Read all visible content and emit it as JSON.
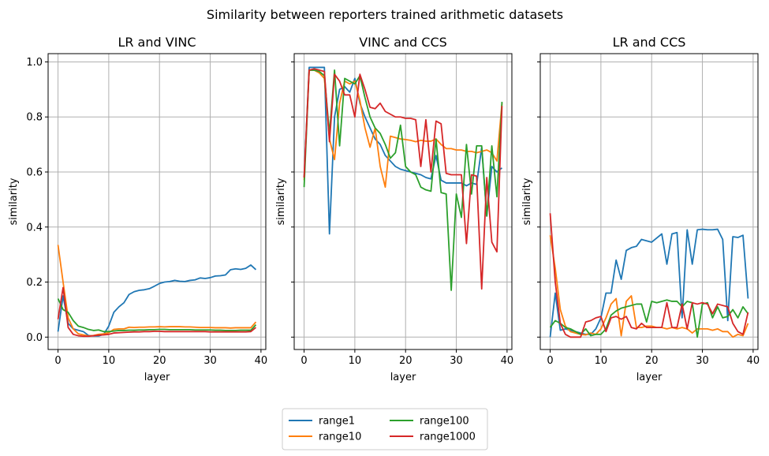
{
  "figure": {
    "suptitle": "Similarity between reporters trained arithmetic datasets"
  },
  "colors": {
    "range1": "#1f77b4",
    "range10": "#ff7f0e",
    "range100": "#2ca02c",
    "range1000": "#d62728",
    "grid": "#b0b0b0",
    "axes": "#000000"
  },
  "legend": {
    "placement": "bottom-center",
    "ncol": 2,
    "entries": [
      "range1",
      "range10",
      "range100",
      "range1000"
    ]
  },
  "chart_data": [
    {
      "type": "line",
      "title": "LR and VINC",
      "xlabel": "layer",
      "ylabel": "similarity",
      "xlim": [
        -1.95,
        40.95
      ],
      "ylim": [
        -0.045,
        1.03
      ],
      "xticks": [
        0,
        10,
        20,
        30,
        40
      ],
      "yticks": [
        0.0,
        0.2,
        0.4,
        0.6,
        0.8,
        1.0
      ],
      "show_ytick_labels": true,
      "grid": true,
      "x": [
        0,
        1,
        2,
        3,
        4,
        5,
        6,
        7,
        8,
        9,
        10,
        11,
        12,
        13,
        14,
        15,
        16,
        17,
        18,
        19,
        20,
        21,
        22,
        23,
        24,
        25,
        26,
        27,
        28,
        29,
        30,
        31,
        32,
        33,
        34,
        35,
        36,
        37,
        38,
        39
      ],
      "series": [
        {
          "name": "range1",
          "values": [
            0.02,
            0.15,
            0.05,
            0.03,
            0.025,
            0.02,
            0.006,
            0.004,
            0.004,
            0.01,
            0.04,
            0.09,
            0.11,
            0.125,
            0.155,
            0.165,
            0.17,
            0.172,
            0.176,
            0.185,
            0.195,
            0.2,
            0.202,
            0.206,
            0.203,
            0.202,
            0.206,
            0.208,
            0.215,
            0.213,
            0.216,
            0.222,
            0.223,
            0.226,
            0.245,
            0.248,
            0.246,
            0.25,
            0.262,
            0.245
          ]
        },
        {
          "name": "range10",
          "values": [
            0.335,
            0.2,
            0.07,
            0.03,
            0.012,
            0.008,
            0.004,
            0.006,
            0.01,
            0.012,
            0.016,
            0.028,
            0.03,
            0.03,
            0.036,
            0.035,
            0.036,
            0.036,
            0.037,
            0.037,
            0.038,
            0.037,
            0.038,
            0.038,
            0.038,
            0.037,
            0.037,
            0.036,
            0.035,
            0.035,
            0.035,
            0.034,
            0.034,
            0.034,
            0.033,
            0.034,
            0.034,
            0.034,
            0.034,
            0.055
          ]
        },
        {
          "name": "range100",
          "values": [
            0.14,
            0.1,
            0.09,
            0.06,
            0.04,
            0.035,
            0.028,
            0.024,
            0.026,
            0.02,
            0.02,
            0.022,
            0.024,
            0.024,
            0.025,
            0.025,
            0.026,
            0.026,
            0.027,
            0.027,
            0.028,
            0.028,
            0.027,
            0.027,
            0.027,
            0.027,
            0.027,
            0.026,
            0.026,
            0.026,
            0.026,
            0.025,
            0.025,
            0.024,
            0.024,
            0.024,
            0.025,
            0.025,
            0.025,
            0.045
          ]
        },
        {
          "name": "range1000",
          "values": [
            0.065,
            0.18,
            0.035,
            0.01,
            0.005,
            0.003,
            0.003,
            0.005,
            0.007,
            0.008,
            0.01,
            0.015,
            0.016,
            0.017,
            0.018,
            0.019,
            0.019,
            0.02,
            0.02,
            0.021,
            0.021,
            0.02,
            0.02,
            0.02,
            0.02,
            0.02,
            0.02,
            0.02,
            0.02,
            0.02,
            0.019,
            0.019,
            0.019,
            0.019,
            0.019,
            0.019,
            0.019,
            0.019,
            0.02,
            0.035
          ]
        }
      ]
    },
    {
      "type": "line",
      "title": "VINC and CCS",
      "xlabel": "layer",
      "ylabel": "similarity",
      "xlim": [
        -1.95,
        40.95
      ],
      "ylim": [
        -0.045,
        1.03
      ],
      "xticks": [
        0,
        10,
        20,
        30,
        40
      ],
      "yticks": [
        0.0,
        0.2,
        0.4,
        0.6,
        0.8,
        1.0
      ],
      "show_ytick_labels": false,
      "grid": true,
      "x": [
        0,
        1,
        2,
        3,
        4,
        5,
        6,
        7,
        8,
        9,
        10,
        11,
        12,
        13,
        14,
        15,
        16,
        17,
        18,
        19,
        20,
        21,
        22,
        23,
        24,
        25,
        26,
        27,
        28,
        29,
        30,
        31,
        32,
        33,
        34,
        35,
        36,
        37,
        38,
        39
      ],
      "series": [
        {
          "name": "range1",
          "values": [
            0.58,
            0.98,
            0.98,
            0.98,
            0.98,
            0.375,
            0.8,
            0.9,
            0.91,
            0.89,
            0.94,
            0.85,
            0.8,
            0.76,
            0.72,
            0.7,
            0.66,
            0.64,
            0.62,
            0.61,
            0.605,
            0.6,
            0.595,
            0.59,
            0.58,
            0.575,
            0.66,
            0.57,
            0.56,
            0.56,
            0.56,
            0.56,
            0.55,
            0.56,
            0.555,
            0.69,
            0.44,
            0.62,
            0.6,
            0.615
          ]
        },
        {
          "name": "range10",
          "values": [
            0.57,
            0.97,
            0.97,
            0.96,
            0.94,
            0.72,
            0.645,
            0.85,
            0.93,
            0.92,
            0.93,
            0.86,
            0.76,
            0.69,
            0.76,
            0.62,
            0.545,
            0.73,
            0.725,
            0.72,
            0.718,
            0.715,
            0.71,
            0.715,
            0.712,
            0.712,
            0.72,
            0.7,
            0.685,
            0.685,
            0.68,
            0.68,
            0.675,
            0.675,
            0.67,
            0.675,
            0.68,
            0.67,
            0.64,
            0.85
          ]
        },
        {
          "name": "range100",
          "values": [
            0.545,
            0.97,
            0.97,
            0.965,
            0.95,
            0.74,
            0.97,
            0.695,
            0.94,
            0.93,
            0.92,
            0.95,
            0.87,
            0.8,
            0.76,
            0.74,
            0.7,
            0.65,
            0.67,
            0.77,
            0.62,
            0.6,
            0.59,
            0.545,
            0.535,
            0.53,
            0.72,
            0.525,
            0.52,
            0.17,
            0.52,
            0.435,
            0.7,
            0.52,
            0.695,
            0.695,
            0.44,
            0.695,
            0.51,
            0.855
          ]
        },
        {
          "name": "range1000",
          "values": [
            0.58,
            0.97,
            0.975,
            0.97,
            0.965,
            0.71,
            0.955,
            0.93,
            0.88,
            0.88,
            0.8,
            0.955,
            0.9,
            0.835,
            0.83,
            0.85,
            0.82,
            0.81,
            0.8,
            0.8,
            0.795,
            0.795,
            0.79,
            0.62,
            0.79,
            0.6,
            0.785,
            0.775,
            0.595,
            0.59,
            0.59,
            0.59,
            0.34,
            0.59,
            0.585,
            0.175,
            0.58,
            0.345,
            0.31,
            0.84
          ]
        }
      ]
    },
    {
      "type": "line",
      "title": "LR and CCS",
      "xlabel": "layer",
      "ylabel": "similarity",
      "xlim": [
        -1.95,
        40.95
      ],
      "ylim": [
        -0.045,
        1.03
      ],
      "xticks": [
        0,
        10,
        20,
        30,
        40
      ],
      "yticks": [
        0.0,
        0.2,
        0.4,
        0.6,
        0.8,
        1.0
      ],
      "show_ytick_labels": false,
      "grid": true,
      "x": [
        0,
        1,
        2,
        3,
        4,
        5,
        6,
        7,
        8,
        9,
        10,
        11,
        12,
        13,
        14,
        15,
        16,
        17,
        18,
        19,
        20,
        21,
        22,
        23,
        24,
        25,
        26,
        27,
        28,
        29,
        30,
        31,
        32,
        33,
        34,
        35,
        36,
        37,
        38,
        39
      ],
      "series": [
        {
          "name": "range1",
          "values": [
            0.0,
            0.16,
            0.025,
            0.03,
            0.025,
            0.02,
            0.015,
            0.01,
            0.01,
            0.03,
            0.07,
            0.16,
            0.16,
            0.28,
            0.21,
            0.315,
            0.325,
            0.33,
            0.355,
            0.35,
            0.345,
            0.36,
            0.375,
            0.265,
            0.375,
            0.38,
            0.07,
            0.39,
            0.265,
            0.39,
            0.392,
            0.39,
            0.39,
            0.392,
            0.355,
            0.06,
            0.365,
            0.362,
            0.37,
            0.14
          ]
        },
        {
          "name": "range10",
          "values": [
            0.37,
            0.25,
            0.1,
            0.04,
            0.02,
            0.015,
            0.01,
            0.008,
            0.015,
            0.01,
            0.03,
            0.07,
            0.12,
            0.14,
            0.005,
            0.13,
            0.15,
            0.035,
            0.035,
            0.04,
            0.04,
            0.035,
            0.035,
            0.03,
            0.035,
            0.03,
            0.035,
            0.03,
            0.015,
            0.03,
            0.03,
            0.03,
            0.025,
            0.03,
            0.02,
            0.02,
            0.0,
            0.01,
            0.005,
            0.05
          ]
        },
        {
          "name": "range100",
          "values": [
            0.035,
            0.06,
            0.05,
            0.035,
            0.03,
            0.02,
            0.01,
            0.03,
            0.005,
            0.01,
            0.01,
            0.03,
            0.08,
            0.095,
            0.105,
            0.11,
            0.115,
            0.12,
            0.12,
            0.055,
            0.13,
            0.125,
            0.13,
            0.135,
            0.13,
            0.13,
            0.11,
            0.13,
            0.125,
            0.0,
            0.12,
            0.125,
            0.07,
            0.11,
            0.07,
            0.075,
            0.1,
            0.07,
            0.11,
            0.085
          ]
        },
        {
          "name": "range1000",
          "values": [
            0.45,
            0.2,
            0.05,
            0.01,
            0.0,
            0.0,
            0.0,
            0.055,
            0.06,
            0.07,
            0.075,
            0.02,
            0.07,
            0.075,
            0.065,
            0.075,
            0.035,
            0.03,
            0.05,
            0.035,
            0.035,
            0.035,
            0.035,
            0.125,
            0.035,
            0.035,
            0.12,
            0.03,
            0.125,
            0.12,
            0.125,
            0.12,
            0.085,
            0.12,
            0.115,
            0.11,
            0.05,
            0.02,
            0.01,
            0.09
          ]
        }
      ]
    }
  ]
}
